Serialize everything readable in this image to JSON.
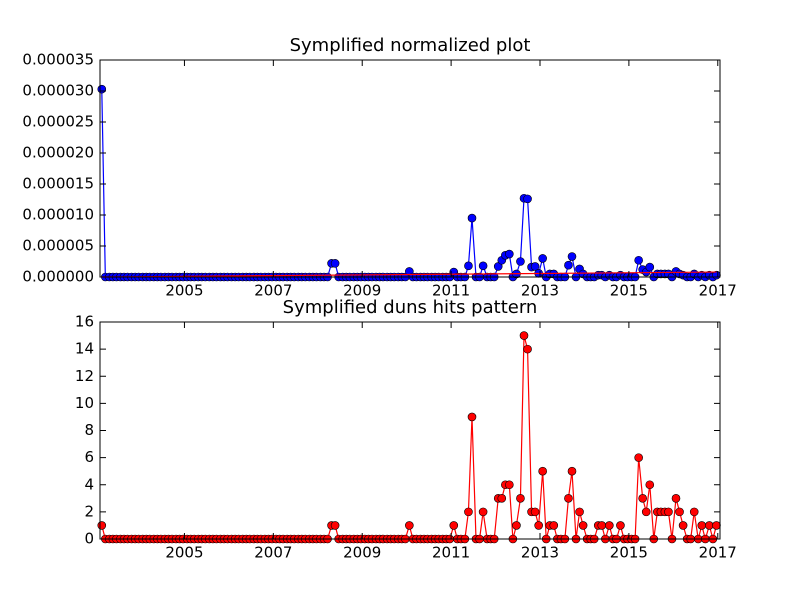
{
  "chart_data": [
    {
      "type": "line",
      "title": "Symplified normalized plot",
      "x": [
        2003.14,
        2003.22,
        2003.31,
        2003.39,
        2003.47,
        2003.56,
        2003.64,
        2003.72,
        2003.81,
        2003.89,
        2003.97,
        2004.06,
        2004.14,
        2004.22,
        2004.31,
        2004.39,
        2004.47,
        2004.56,
        2004.64,
        2004.72,
        2004.81,
        2004.89,
        2004.97,
        2005.06,
        2005.14,
        2005.22,
        2005.31,
        2005.39,
        2005.47,
        2005.56,
        2005.64,
        2005.72,
        2005.81,
        2005.89,
        2005.97,
        2006.06,
        2006.14,
        2006.22,
        2006.31,
        2006.39,
        2006.47,
        2006.56,
        2006.64,
        2006.72,
        2006.81,
        2006.89,
        2006.97,
        2007.06,
        2007.14,
        2007.22,
        2007.31,
        2007.39,
        2007.47,
        2007.56,
        2007.64,
        2007.72,
        2007.81,
        2007.89,
        2007.97,
        2008.06,
        2008.14,
        2008.22,
        2008.31,
        2008.39,
        2008.47,
        2008.56,
        2008.64,
        2008.72,
        2008.81,
        2008.89,
        2008.97,
        2009.06,
        2009.14,
        2009.22,
        2009.31,
        2009.39,
        2009.47,
        2009.56,
        2009.64,
        2009.72,
        2009.81,
        2009.89,
        2009.97,
        2010.06,
        2010.14,
        2010.22,
        2010.31,
        2010.39,
        2010.47,
        2010.56,
        2010.64,
        2010.72,
        2010.81,
        2010.89,
        2010.97,
        2011.06,
        2011.14,
        2011.22,
        2011.31,
        2011.39,
        2011.47,
        2011.56,
        2011.64,
        2011.72,
        2011.81,
        2011.89,
        2011.97,
        2012.06,
        2012.14,
        2012.22,
        2012.31,
        2012.39,
        2012.47,
        2012.56,
        2012.64,
        2012.72,
        2012.81,
        2012.89,
        2012.97,
        2013.06,
        2013.14,
        2013.22,
        2013.31,
        2013.39,
        2013.47,
        2013.56,
        2013.64,
        2013.72,
        2013.81,
        2013.89,
        2013.97,
        2014.06,
        2014.14,
        2014.22,
        2014.31,
        2014.39,
        2014.47,
        2014.56,
        2014.64,
        2014.72,
        2014.81,
        2014.89,
        2014.97,
        2015.06,
        2015.14,
        2015.22,
        2015.31,
        2015.39,
        2015.47,
        2015.56,
        2015.64,
        2015.72,
        2015.81,
        2015.89,
        2015.97,
        2016.06,
        2016.14,
        2016.22,
        2016.31,
        2016.39,
        2016.47,
        2016.56,
        2016.64,
        2016.72,
        2016.81,
        2016.89,
        2016.97
      ],
      "series": [
        {
          "color": "#0000ff",
          "marker": "o",
          "values": [
            3.03e-05,
            0,
            0,
            0,
            0,
            0,
            0,
            0,
            0,
            0,
            0,
            0,
            0,
            0,
            0,
            0,
            0,
            0,
            0,
            0,
            0,
            0,
            0,
            0,
            0,
            0,
            0,
            0,
            0,
            0,
            0,
            0,
            0,
            0,
            0,
            0,
            0,
            0,
            0,
            0,
            0,
            0,
            0,
            0,
            0,
            0,
            0,
            0,
            0,
            0,
            0,
            0,
            0,
            0,
            0,
            0,
            0,
            0,
            0,
            0,
            0,
            0,
            2.2e-06,
            2.2e-06,
            0,
            0,
            0,
            0,
            0,
            0,
            0,
            0,
            0,
            0,
            0,
            0,
            0,
            0,
            0,
            0,
            0,
            0,
            0,
            9e-07,
            0,
            0,
            0,
            0,
            0,
            0,
            0,
            0,
            0,
            0,
            0,
            8e-07,
            0,
            0,
            0,
            1.8e-06,
            9.5e-06,
            0,
            0,
            1.8e-06,
            0,
            0,
            0,
            1.7e-06,
            2.7e-06,
            3.5e-06,
            3.7e-06,
            0,
            5e-07,
            2.5e-06,
            1.27e-05,
            1.26e-05,
            1.6e-06,
            1.7e-06,
            6e-07,
            3e-06,
            0,
            5e-07,
            5e-07,
            0,
            0,
            0,
            1.9e-06,
            3.3e-06,
            0,
            1.3e-06,
            5e-07,
            0,
            0,
            0,
            3e-07,
            3e-07,
            0,
            3e-07,
            0,
            0,
            3e-07,
            0,
            0,
            0,
            0,
            2.7e-06,
            1.2e-06,
            8e-07,
            1.6e-06,
            0,
            5e-07,
            5e-07,
            5e-07,
            5e-07,
            0,
            9e-07,
            5e-07,
            3e-07,
            0,
            0,
            5e-07,
            0,
            3e-07,
            0,
            3e-07,
            0,
            3e-07
          ]
        },
        {
          "color": "#ff0000",
          "x": [
            2003.14,
            2016.97
          ],
          "values": [
            0,
            8e-07
          ]
        }
      ],
      "xlim": [
        2003.1,
        2017.05
      ],
      "xticks": [
        2005,
        2007,
        2009,
        2011,
        2013,
        2015,
        2017
      ],
      "ylim": [
        0,
        3.5e-05
      ],
      "yticks": [
        {
          "value": 0,
          "label": "0.000000"
        },
        {
          "value": 5e-06,
          "label": "0.000005"
        },
        {
          "value": 1e-05,
          "label": "0.000010"
        },
        {
          "value": 1.5e-05,
          "label": "0.000015"
        },
        {
          "value": 2e-05,
          "label": "0.000020"
        },
        {
          "value": 2.5e-05,
          "label": "0.000025"
        },
        {
          "value": 3e-05,
          "label": "0.000030"
        },
        {
          "value": 3.5e-05,
          "label": "0.000035"
        }
      ]
    },
    {
      "type": "line",
      "title": "Symplified duns hits pattern",
      "x": [
        2003.14,
        2003.22,
        2003.31,
        2003.39,
        2003.47,
        2003.56,
        2003.64,
        2003.72,
        2003.81,
        2003.89,
        2003.97,
        2004.06,
        2004.14,
        2004.22,
        2004.31,
        2004.39,
        2004.47,
        2004.56,
        2004.64,
        2004.72,
        2004.81,
        2004.89,
        2004.97,
        2005.06,
        2005.14,
        2005.22,
        2005.31,
        2005.39,
        2005.47,
        2005.56,
        2005.64,
        2005.72,
        2005.81,
        2005.89,
        2005.97,
        2006.06,
        2006.14,
        2006.22,
        2006.31,
        2006.39,
        2006.47,
        2006.56,
        2006.64,
        2006.72,
        2006.81,
        2006.89,
        2006.97,
        2007.06,
        2007.14,
        2007.22,
        2007.31,
        2007.39,
        2007.47,
        2007.56,
        2007.64,
        2007.72,
        2007.81,
        2007.89,
        2007.97,
        2008.06,
        2008.14,
        2008.22,
        2008.31,
        2008.39,
        2008.47,
        2008.56,
        2008.64,
        2008.72,
        2008.81,
        2008.89,
        2008.97,
        2009.06,
        2009.14,
        2009.22,
        2009.31,
        2009.39,
        2009.47,
        2009.56,
        2009.64,
        2009.72,
        2009.81,
        2009.89,
        2009.97,
        2010.06,
        2010.14,
        2010.22,
        2010.31,
        2010.39,
        2010.47,
        2010.56,
        2010.64,
        2010.72,
        2010.81,
        2010.89,
        2010.97,
        2011.06,
        2011.14,
        2011.22,
        2011.31,
        2011.39,
        2011.47,
        2011.56,
        2011.64,
        2011.72,
        2011.81,
        2011.89,
        2011.97,
        2012.06,
        2012.14,
        2012.22,
        2012.31,
        2012.39,
        2012.47,
        2012.56,
        2012.64,
        2012.72,
        2012.81,
        2012.89,
        2012.97,
        2013.06,
        2013.14,
        2013.22,
        2013.31,
        2013.39,
        2013.47,
        2013.56,
        2013.64,
        2013.72,
        2013.81,
        2013.89,
        2013.97,
        2014.06,
        2014.14,
        2014.22,
        2014.31,
        2014.39,
        2014.47,
        2014.56,
        2014.64,
        2014.72,
        2014.81,
        2014.89,
        2014.97,
        2015.06,
        2015.14,
        2015.22,
        2015.31,
        2015.39,
        2015.47,
        2015.56,
        2015.64,
        2015.72,
        2015.81,
        2015.89,
        2015.97,
        2016.06,
        2016.14,
        2016.22,
        2016.31,
        2016.39,
        2016.47,
        2016.56,
        2016.64,
        2016.72,
        2016.81,
        2016.89,
        2016.97
      ],
      "series": [
        {
          "color": "#ff0000",
          "marker": "o",
          "values": [
            1,
            0,
            0,
            0,
            0,
            0,
            0,
            0,
            0,
            0,
            0,
            0,
            0,
            0,
            0,
            0,
            0,
            0,
            0,
            0,
            0,
            0,
            0,
            0,
            0,
            0,
            0,
            0,
            0,
            0,
            0,
            0,
            0,
            0,
            0,
            0,
            0,
            0,
            0,
            0,
            0,
            0,
            0,
            0,
            0,
            0,
            0,
            0,
            0,
            0,
            0,
            0,
            0,
            0,
            0,
            0,
            0,
            0,
            0,
            0,
            0,
            0,
            1,
            1,
            0,
            0,
            0,
            0,
            0,
            0,
            0,
            0,
            0,
            0,
            0,
            0,
            0,
            0,
            0,
            0,
            0,
            0,
            0,
            1,
            0,
            0,
            0,
            0,
            0,
            0,
            0,
            0,
            0,
            0,
            0,
            1,
            0,
            0,
            0,
            2,
            9,
            0,
            0,
            2,
            0,
            0,
            0,
            3,
            3,
            4,
            4,
            0,
            1,
            3,
            15,
            14,
            2,
            2,
            1,
            5,
            0,
            1,
            1,
            0,
            0,
            0,
            3,
            5,
            0,
            2,
            1,
            0,
            0,
            0,
            1,
            1,
            0,
            1,
            0,
            0,
            1,
            0,
            0,
            0,
            0,
            6,
            3,
            2,
            4,
            0,
            2,
            2,
            2,
            2,
            0,
            3,
            2,
            1,
            0,
            0,
            2,
            0,
            1,
            0,
            1,
            0,
            1
          ]
        }
      ],
      "xlim": [
        2003.1,
        2017.05
      ],
      "xticks": [
        2005,
        2007,
        2009,
        2011,
        2013,
        2015,
        2017
      ],
      "ylim": [
        0,
        16
      ],
      "yticks": [
        0,
        2,
        4,
        6,
        8,
        10,
        12,
        14,
        16
      ]
    }
  ]
}
